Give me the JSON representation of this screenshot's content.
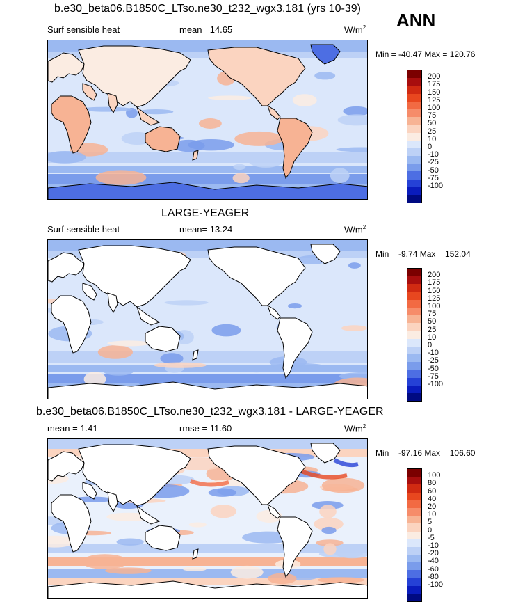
{
  "header": {
    "title": "b.e30_beta06.B1850C_LTso.ne30_t232_wgx3.181 (yrs 10-39)",
    "season": "ANN"
  },
  "panels": [
    {
      "heading": "",
      "left_label": "Surf sensible heat",
      "center_label": "mean=  14.65",
      "right_label": "W/m",
      "right_sup": "2",
      "minmax": "Min = -40.47 Max = 120.76",
      "colorbar": {
        "labels": [
          "200",
          "175",
          "150",
          "125",
          "100",
          "75",
          "50",
          "25",
          "10",
          "0",
          "-10",
          "-25",
          "-50",
          "-75",
          "-100"
        ],
        "colors": [
          "#7b0000",
          "#a80e0e",
          "#d02a12",
          "#e8471f",
          "#f26a43",
          "#f68c6a",
          "#f7b394",
          "#fbd4c0",
          "#fbece2",
          "#dbe7fb",
          "#bdd1f6",
          "#9bb9f1",
          "#7a9ceb",
          "#4d6ee3",
          "#2541d6",
          "#0a1cbd",
          "#000a82"
        ]
      },
      "land_visible": true
    },
    {
      "heading": "LARGE-YEAGER",
      "left_label": "Surf sensible heat",
      "center_label": "mean=  13.24",
      "right_label": "W/m",
      "right_sup": "2",
      "minmax": "Min =  -9.74 Max = 152.04",
      "colorbar": {
        "labels": [
          "200",
          "175",
          "150",
          "125",
          "100",
          "75",
          "50",
          "25",
          "10",
          "0",
          "-10",
          "-25",
          "-50",
          "-75",
          "-100"
        ],
        "colors": [
          "#7b0000",
          "#a80e0e",
          "#d02a12",
          "#e8471f",
          "#f26a43",
          "#f68c6a",
          "#f7b394",
          "#fbd4c0",
          "#fbece2",
          "#dbe7fb",
          "#bdd1f6",
          "#9bb9f1",
          "#7a9ceb",
          "#4d6ee3",
          "#2541d6",
          "#0a1cbd",
          "#000a82"
        ]
      },
      "land_visible": false
    },
    {
      "heading": "b.e30_beta06.B1850C_LTso.ne30_t232_wgx3.181 - LARGE-YEAGER",
      "left_label": "mean =   1.41",
      "center_label": "rmse =  11.60",
      "right_label": "W/m",
      "right_sup": "2",
      "minmax": "Min = -97.16 Max = 106.60",
      "colorbar": {
        "labels": [
          "100",
          "80",
          "60",
          "40",
          "20",
          "10",
          "5",
          "0",
          "-5",
          "-10",
          "-20",
          "-40",
          "-60",
          "-80",
          "-100"
        ],
        "colors": [
          "#7b0000",
          "#a80e0e",
          "#d02a12",
          "#e8471f",
          "#f26a43",
          "#f68c6a",
          "#f7b394",
          "#fbd4c0",
          "#fbece2",
          "#dbe7fb",
          "#bdd1f6",
          "#9bb9f1",
          "#7a9ceb",
          "#4d6ee3",
          "#2541d6",
          "#0a1cbd",
          "#000a82"
        ]
      },
      "land_visible": false
    }
  ]
}
